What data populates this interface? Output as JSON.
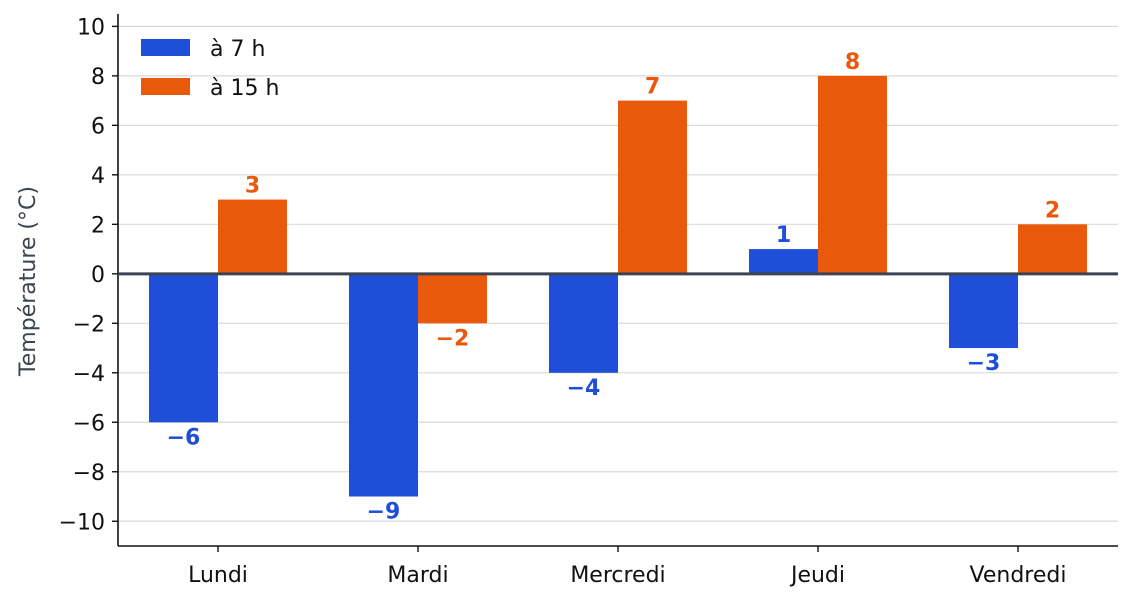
{
  "chart_data": {
    "type": "bar",
    "title": "",
    "xlabel": "",
    "ylabel": "Température (°C)",
    "categories": [
      "Lundi",
      "Mardi",
      "Mercredi",
      "Jeudi",
      "Vendredi"
    ],
    "series": [
      {
        "name": "à 7 h",
        "values": [
          -6,
          -9,
          -4,
          1,
          -3
        ],
        "color": "#1f4fd8"
      },
      {
        "name": "à 15 h",
        "values": [
          3,
          -2,
          7,
          8,
          2
        ],
        "color": "#e8590c"
      }
    ],
    "data_labels": [
      [
        "−6",
        "−9",
        "−4",
        "1",
        "−3"
      ],
      [
        "3",
        "−2",
        "7",
        "8",
        "2"
      ]
    ],
    "yticks": [
      -10,
      -8,
      -6,
      -4,
      -2,
      0,
      2,
      4,
      6,
      8,
      10
    ],
    "ytick_labels": [
      "−10",
      "−8",
      "−6",
      "−4",
      "−2",
      "0",
      "2",
      "4",
      "6",
      "8",
      "10"
    ],
    "ylim": [
      -11,
      10.5
    ],
    "grid": "horizontal",
    "legend": "top-left",
    "colors": {
      "zero_line": "#3d4451",
      "grid": "#d9d9d9",
      "axis": "#111111"
    }
  }
}
